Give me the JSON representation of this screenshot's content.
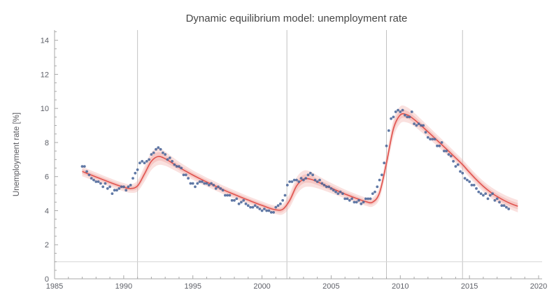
{
  "chart_data": {
    "type": "scatter+line",
    "title": "Dynamic equilibrium model: unemployment rate",
    "xlabel": "",
    "ylabel": "Unemployment rate [%]",
    "xlim": [
      1985,
      2020
    ],
    "ylim": [
      0,
      14.6
    ],
    "x_ticks": [
      1985,
      1990,
      1995,
      2000,
      2005,
      2010,
      2015,
      2020
    ],
    "y_ticks": [
      0,
      2,
      4,
      6,
      8,
      10,
      12,
      14
    ],
    "x_minor_step": 1,
    "y_minor_step": 0.5,
    "grid": "off",
    "legend": "none",
    "event_lines": [
      1991.0,
      2001.8,
      2009.0,
      2014.5
    ],
    "reference_line_y": 1,
    "observed": {
      "name": "unemployment-rate-monthly-data",
      "t0": 1987.0,
      "dt": 0.16667,
      "values": [
        6.6,
        6.6,
        6.3,
        6.1,
        5.9,
        5.8,
        5.7,
        5.7,
        5.6,
        5.4,
        5.6,
        5.3,
        5.4,
        5.0,
        5.2,
        5.2,
        5.3,
        5.4,
        5.4,
        5.2,
        5.4,
        5.5,
        5.9,
        6.2,
        6.4,
        6.8,
        6.9,
        6.8,
        6.9,
        7.0,
        7.3,
        7.4,
        7.6,
        7.7,
        7.6,
        7.4,
        7.3,
        7.0,
        7.1,
        6.9,
        6.7,
        6.6,
        6.6,
        6.5,
        6.1,
        6.1,
        5.9,
        5.6,
        5.6,
        5.4,
        5.6,
        5.7,
        5.7,
        5.6,
        5.6,
        5.5,
        5.6,
        5.5,
        5.3,
        5.4,
        5.3,
        5.2,
        4.9,
        4.9,
        4.9,
        4.6,
        4.6,
        4.7,
        4.4,
        4.5,
        4.6,
        4.4,
        4.3,
        4.2,
        4.2,
        4.3,
        4.2,
        4.1,
        4.0,
        4.1,
        4.0,
        4.0,
        3.9,
        3.9,
        4.2,
        4.3,
        4.4,
        4.6,
        4.9,
        5.5,
        5.7,
        5.7,
        5.8,
        5.8,
        5.7,
        5.9,
        5.8,
        5.9,
        6.1,
        6.2,
        6.1,
        5.8,
        5.7,
        5.8,
        5.6,
        5.5,
        5.4,
        5.4,
        5.3,
        5.2,
        5.1,
        5.0,
        5.1,
        5.0,
        4.7,
        4.7,
        4.6,
        4.7,
        4.5,
        4.5,
        4.6,
        4.4,
        4.5,
        4.7,
        4.7,
        4.7,
        5.0,
        5.1,
        5.4,
        5.8,
        6.1,
        6.8,
        7.8,
        8.7,
        9.4,
        9.5,
        9.8,
        9.9,
        9.8,
        9.9,
        9.6,
        9.5,
        9.5,
        9.8,
        9.1,
        9.0,
        9.1,
        9.0,
        9.0,
        8.6,
        8.3,
        8.2,
        8.2,
        8.2,
        7.8,
        7.8,
        8.0,
        7.5,
        7.5,
        7.3,
        7.2,
        6.9,
        6.6,
        6.7,
        6.3,
        6.2,
        5.9,
        5.8,
        5.7,
        5.5,
        5.5,
        5.3,
        5.1,
        5.0,
        4.9,
        5.0,
        4.7,
        4.9,
        5.0,
        4.6,
        4.7,
        4.5,
        4.3,
        4.3,
        4.2,
        4.1
      ]
    },
    "model": {
      "name": "dynamic-equilibrium-model-fit",
      "t0": 1987.0,
      "dt": 0.5,
      "values": [
        6.3,
        6.14,
        5.98,
        5.82,
        5.66,
        5.51,
        5.38,
        5.3,
        5.45,
        6.15,
        6.9,
        7.18,
        7.05,
        6.8,
        6.55,
        6.31,
        6.09,
        5.88,
        5.68,
        5.49,
        5.3,
        5.12,
        4.95,
        4.78,
        4.62,
        4.46,
        4.31,
        4.16,
        4.05,
        4.08,
        4.6,
        5.45,
        5.85,
        5.85,
        5.69,
        5.51,
        5.33,
        5.15,
        4.98,
        4.82,
        4.67,
        4.53,
        4.5,
        5.05,
        6.8,
        8.8,
        9.62,
        9.62,
        9.35,
        9.0,
        8.63,
        8.25,
        7.87,
        7.49,
        7.1,
        6.7,
        6.25,
        5.82,
        5.43,
        5.1,
        4.83,
        4.6,
        4.41,
        4.26
      ],
      "band_halfwidth": [
        0.28,
        0.27,
        0.26,
        0.25,
        0.25,
        0.24,
        0.24,
        0.25,
        0.32,
        0.45,
        0.52,
        0.5,
        0.42,
        0.36,
        0.32,
        0.3,
        0.28,
        0.27,
        0.26,
        0.26,
        0.25,
        0.25,
        0.24,
        0.24,
        0.23,
        0.23,
        0.23,
        0.23,
        0.25,
        0.3,
        0.42,
        0.5,
        0.5,
        0.45,
        0.38,
        0.33,
        0.3,
        0.28,
        0.26,
        0.25,
        0.24,
        0.24,
        0.26,
        0.35,
        0.48,
        0.52,
        0.5,
        0.45,
        0.4,
        0.37,
        0.35,
        0.33,
        0.32,
        0.31,
        0.3,
        0.3,
        0.3,
        0.3,
        0.31,
        0.32,
        0.33,
        0.34,
        0.35,
        0.36
      ]
    },
    "colors": {
      "data_points": "#4a679a",
      "model_line": "#e0534e",
      "band": "#f2a9a4",
      "event_line": "#c2c2c2",
      "reference_line": "#d6d6d6",
      "axis": "#a8a8a8",
      "tick_label": "#5e6068",
      "title_text": "#474747",
      "axis_label_text": "#5a5a5f"
    }
  }
}
